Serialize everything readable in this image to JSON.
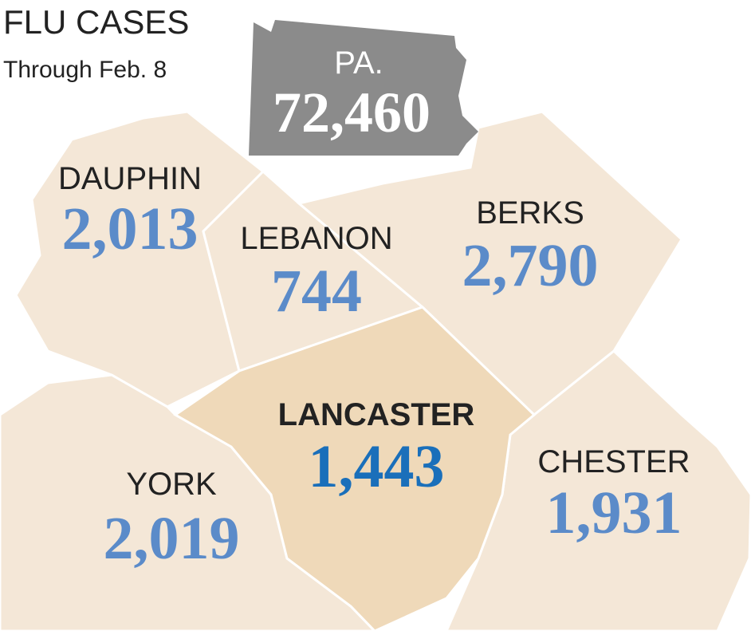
{
  "header": {
    "title": "FLU CASES",
    "subtitle": "Through Feb. 8"
  },
  "state": {
    "name": "PA.",
    "cases": "72,460"
  },
  "regions": [
    {
      "name": "DAUPHIN",
      "cases": "2,013"
    },
    {
      "name": "LEBANON",
      "cases": "744"
    },
    {
      "name": "BERKS",
      "cases": "2,790"
    },
    {
      "name": "LANCASTER",
      "cases": "1,443"
    },
    {
      "name": "CHESTER",
      "cases": "1,931"
    },
    {
      "name": "YORK",
      "cases": "2,019"
    }
  ]
}
